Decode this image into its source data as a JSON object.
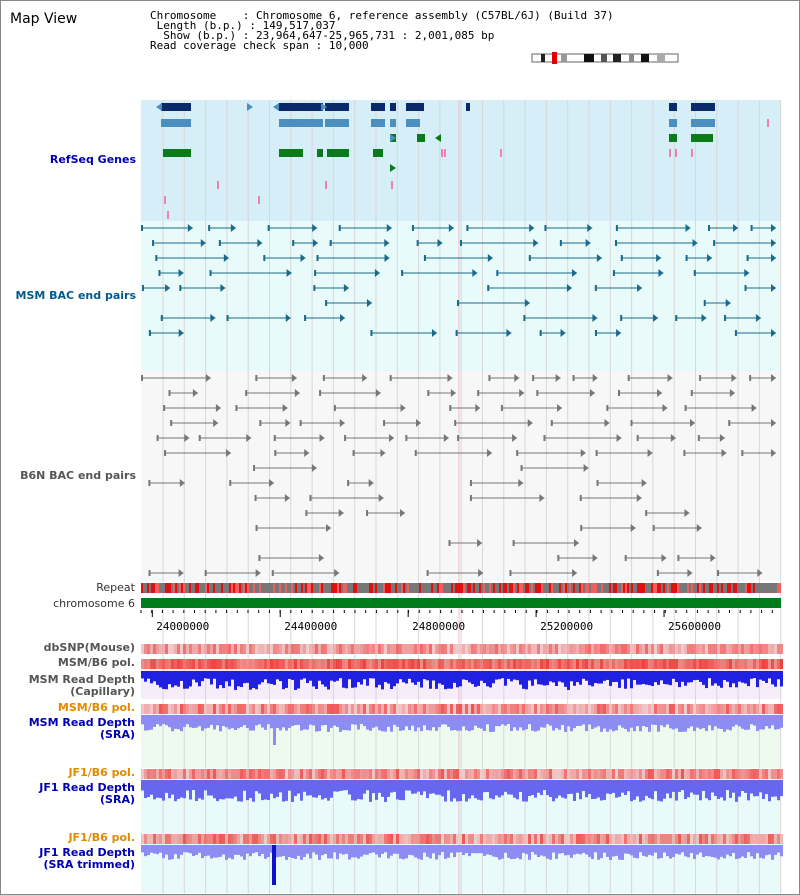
{
  "title": "Map View",
  "info": {
    "chromosome_label": "Chromosome",
    "chromosome_value": "Chromosome 6, reference assembly (C57BL/6J) (Build 37)",
    "length_label": "Length (b.p.)",
    "length_value": "149,517,037",
    "show_label": "Show (b.p.)",
    "show_value": "23,964,647-25,965,731 : 2,001,085 bp",
    "span_label": "Read coverage check span",
    "span_value": "10,000"
  },
  "tracks": {
    "refseq": "RefSeq Genes",
    "msm_bac": "MSM BAC end pairs",
    "b6n_bac": "B6N BAC end pairs",
    "repeat": "Repeat",
    "chromosome": "chromosome 6",
    "dbsnp": "dbSNP(Mouse)",
    "msm_b6_pol": "MSM/B6 pol.",
    "msm_depth_cap_1": "MSM Read Depth",
    "msm_depth_cap_2": "(Capillary)",
    "msm_b6_pol_sra": "MSM/B6 pol.",
    "msm_depth_sra_1": "MSM Read Depth",
    "msm_depth_sra_2": "(SRA)",
    "jf1_b6_pol": "JF1/B6 pol.",
    "jf1_depth_sra_1": "JF1 Read Depth",
    "jf1_depth_sra_2": "(SRA)",
    "jf1_b6_pol_trim": "JF1/B6 pol.",
    "jf1_depth_trim_1": "JF1 Read Depth",
    "jf1_depth_trim_2": "(SRA trimmed)"
  },
  "axis": {
    "ticks": [
      "24000000",
      "24400000",
      "24800000",
      "25200000",
      "25600000"
    ],
    "tick_values": [
      24000000,
      24400000,
      24800000,
      25200000,
      25600000
    ],
    "start": 23964647,
    "end": 25965731
  },
  "colors": {
    "refseq_bg": "#d6eef8",
    "msm_bg": "#e8fafa",
    "b6n_bg": "#f7f7f7",
    "refseq_dark": "#0a2a6a",
    "refseq_mid": "#4a8fbf",
    "refseq_green": "#0a7a1a",
    "chromosome_bar": "#007a1a",
    "depth_blue": "#2020e0",
    "pol_red": "#e02020"
  }
}
